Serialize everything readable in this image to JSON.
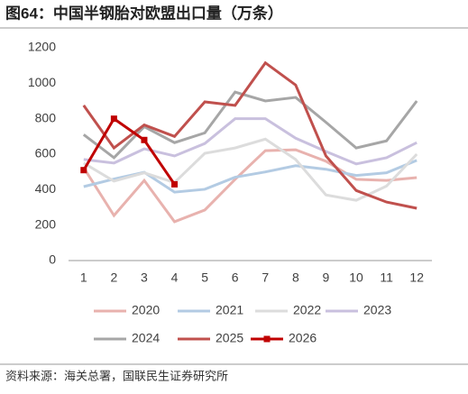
{
  "header": {
    "title": "图64：中国半钢胎对欧盟出口量（万条）"
  },
  "chart_data": {
    "type": "line",
    "categories": [
      "1",
      "2",
      "3",
      "4",
      "5",
      "6",
      "7",
      "8",
      "9",
      "10",
      "11",
      "12"
    ],
    "ylim": [
      0,
      1200
    ],
    "yticks": [
      0,
      200,
      400,
      600,
      800,
      1000,
      1200
    ],
    "grid": false,
    "series": [
      {
        "name": "2020",
        "color": "#e8b2ae",
        "values": [
          524,
          254,
          452,
          219,
          285,
          458,
          620,
          625,
          560,
          458,
          452,
          468
        ]
      },
      {
        "name": "2021",
        "color": "#b3cbe3",
        "values": [
          417,
          460,
          498,
          386,
          402,
          470,
          500,
          535,
          515,
          480,
          495,
          565
        ]
      },
      {
        "name": "2022",
        "color": "#dcdcdc",
        "values": [
          550,
          448,
          495,
          440,
          605,
          635,
          685,
          570,
          370,
          340,
          420,
          600
        ]
      },
      {
        "name": "2023",
        "color": "#c9c0de",
        "values": [
          570,
          550,
          630,
          590,
          660,
          800,
          800,
          690,
          615,
          545,
          580,
          665
        ]
      },
      {
        "name": "2024",
        "color": "#a6a6a6",
        "values": [
          710,
          580,
          755,
          665,
          720,
          950,
          900,
          920,
          780,
          635,
          675,
          900
        ]
      },
      {
        "name": "2025",
        "color": "#c0504d",
        "values": [
          875,
          635,
          765,
          700,
          895,
          875,
          1115,
          990,
          590,
          395,
          330,
          295
        ]
      },
      {
        "name": "2026",
        "color": "#c00000",
        "marker": "square",
        "values": [
          510,
          800,
          680,
          430,
          null,
          null,
          null,
          null,
          null,
          null,
          null,
          null
        ]
      }
    ]
  },
  "footer": {
    "source": "资料来源：海关总署，国联民生证券研究所"
  }
}
